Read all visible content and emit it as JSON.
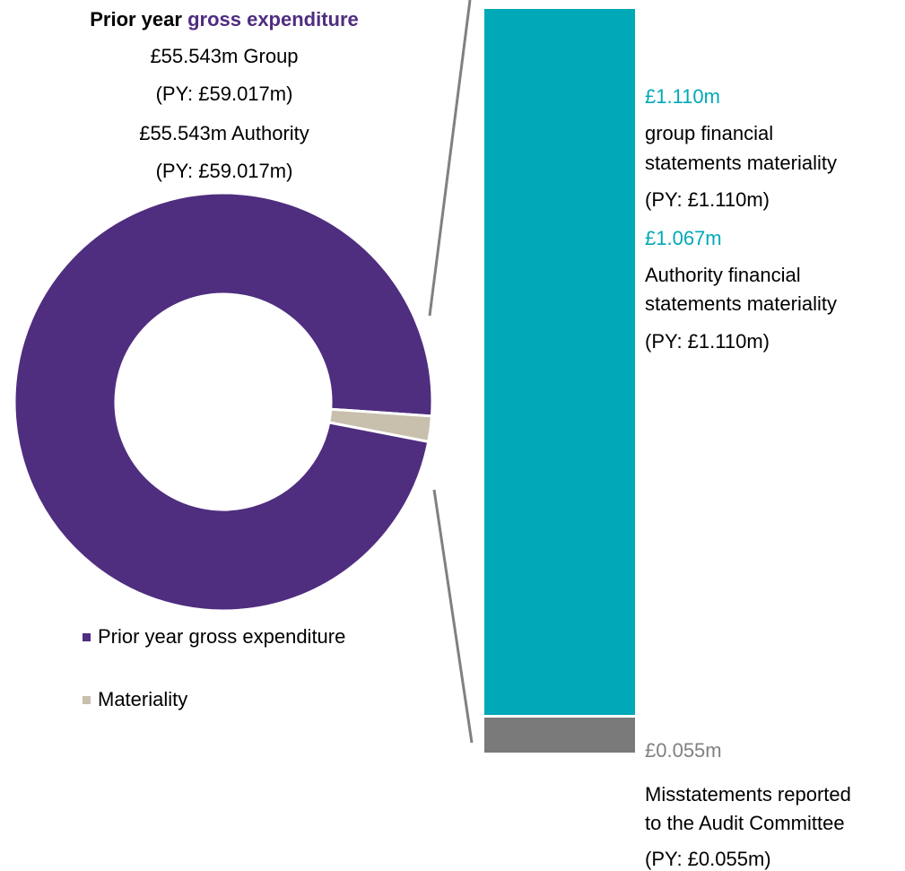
{
  "header": {
    "title_plain": "Prior year ",
    "title_accent": "gross expenditure",
    "line1": "£55.543m Group",
    "line2": "(PY: £59.017m)",
    "line3": "£55.543m Authority",
    "line4": "(PY: £59.017m)"
  },
  "colors": {
    "expenditure": "#4f2d7f",
    "materiality": "#c8bfad",
    "bar_materiality": "#00a9b7",
    "bar_misstatement": "#7a7a7a",
    "connector": "#808080"
  },
  "annotations": {
    "group_value": "£1.110m",
    "group_label_1": "group financial",
    "group_label_2": "statements materiality",
    "group_py": "(PY: £1.110m)",
    "authority_value": "£1.067m",
    "authority_label_1": "Authority financial",
    "authority_label_2": "statements materiality",
    "authority_py": "(PY: £1.110m)",
    "misstatement_value": "£0.055m",
    "misstatement_label_1": "Misstatements reported",
    "misstatement_label_2": "to the Audit Committee",
    "misstatement_py": "(PY: £0.055m)"
  },
  "chart_data": [
    {
      "type": "pie",
      "categories": [
        "Prior year gross expenditure",
        "Materiality"
      ],
      "values": [
        55.543,
        1.11
      ],
      "legend_position": "bottom",
      "donut": true
    },
    {
      "type": "bar",
      "stacked": true,
      "categories": [
        "Materiality",
        "Misstatements reported to the Audit Committee"
      ],
      "values": [
        1.11,
        0.055
      ]
    }
  ],
  "legend": [
    {
      "label": "Prior year gross expenditure",
      "color": "#4f2d7f"
    },
    {
      "label": "Materiality",
      "color": "#c8bfad"
    }
  ]
}
